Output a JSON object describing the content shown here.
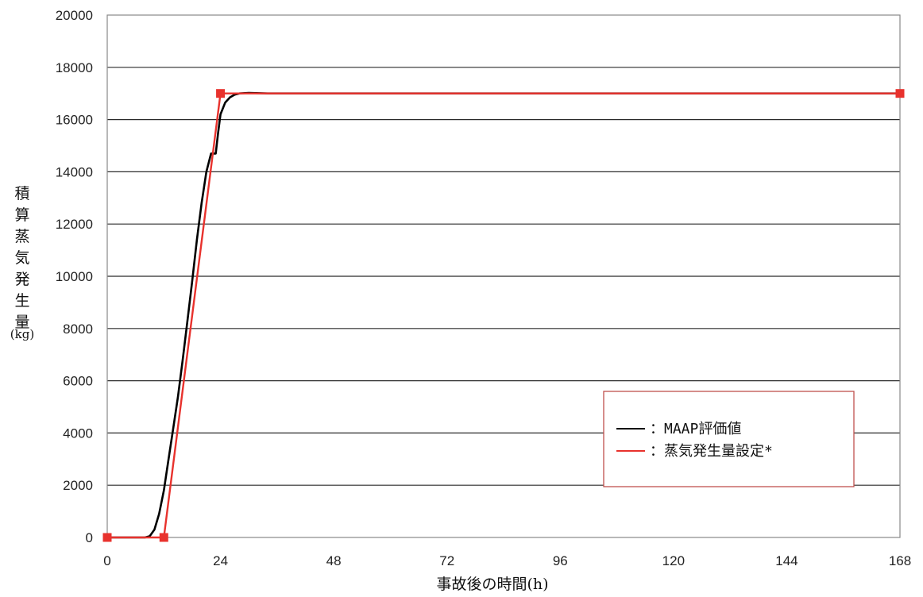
{
  "chart_data": {
    "type": "line",
    "xlabel": "事故後の時間(h)",
    "ylabel": "積算蒸気発生量",
    "yunit": "(kg)",
    "xlim": [
      0,
      168
    ],
    "ylim": [
      0,
      20000
    ],
    "xticks": [
      0,
      24,
      48,
      72,
      96,
      120,
      144,
      168
    ],
    "yticks": [
      0,
      2000,
      4000,
      6000,
      8000,
      10000,
      12000,
      14000,
      16000,
      18000,
      20000
    ],
    "grid": "horizontal",
    "legend_position": "lower-right",
    "series": [
      {
        "name": "：MAAP評価値",
        "color": "#000000",
        "markers": false,
        "x": [
          0,
          8,
          9,
          10,
          11,
          12,
          13,
          14,
          15,
          16,
          17,
          18,
          19,
          20,
          21,
          22,
          22.5,
          23,
          23.5,
          24,
          25,
          26,
          27,
          28,
          30,
          34,
          168
        ],
        "y": [
          0,
          0,
          50,
          300,
          900,
          1800,
          3000,
          4200,
          5400,
          6800,
          8300,
          9800,
          11400,
          12800,
          14000,
          14700,
          14700,
          14700,
          15500,
          16200,
          16650,
          16850,
          16950,
          17000,
          17020,
          17000,
          17000
        ]
      },
      {
        "name": "：蒸気発生量設定*",
        "color": "#e8322d",
        "markers": true,
        "marker_color": "#e8322d",
        "x": [
          0,
          12,
          24,
          168
        ],
        "y": [
          0,
          0,
          17000,
          17000
        ]
      }
    ]
  }
}
